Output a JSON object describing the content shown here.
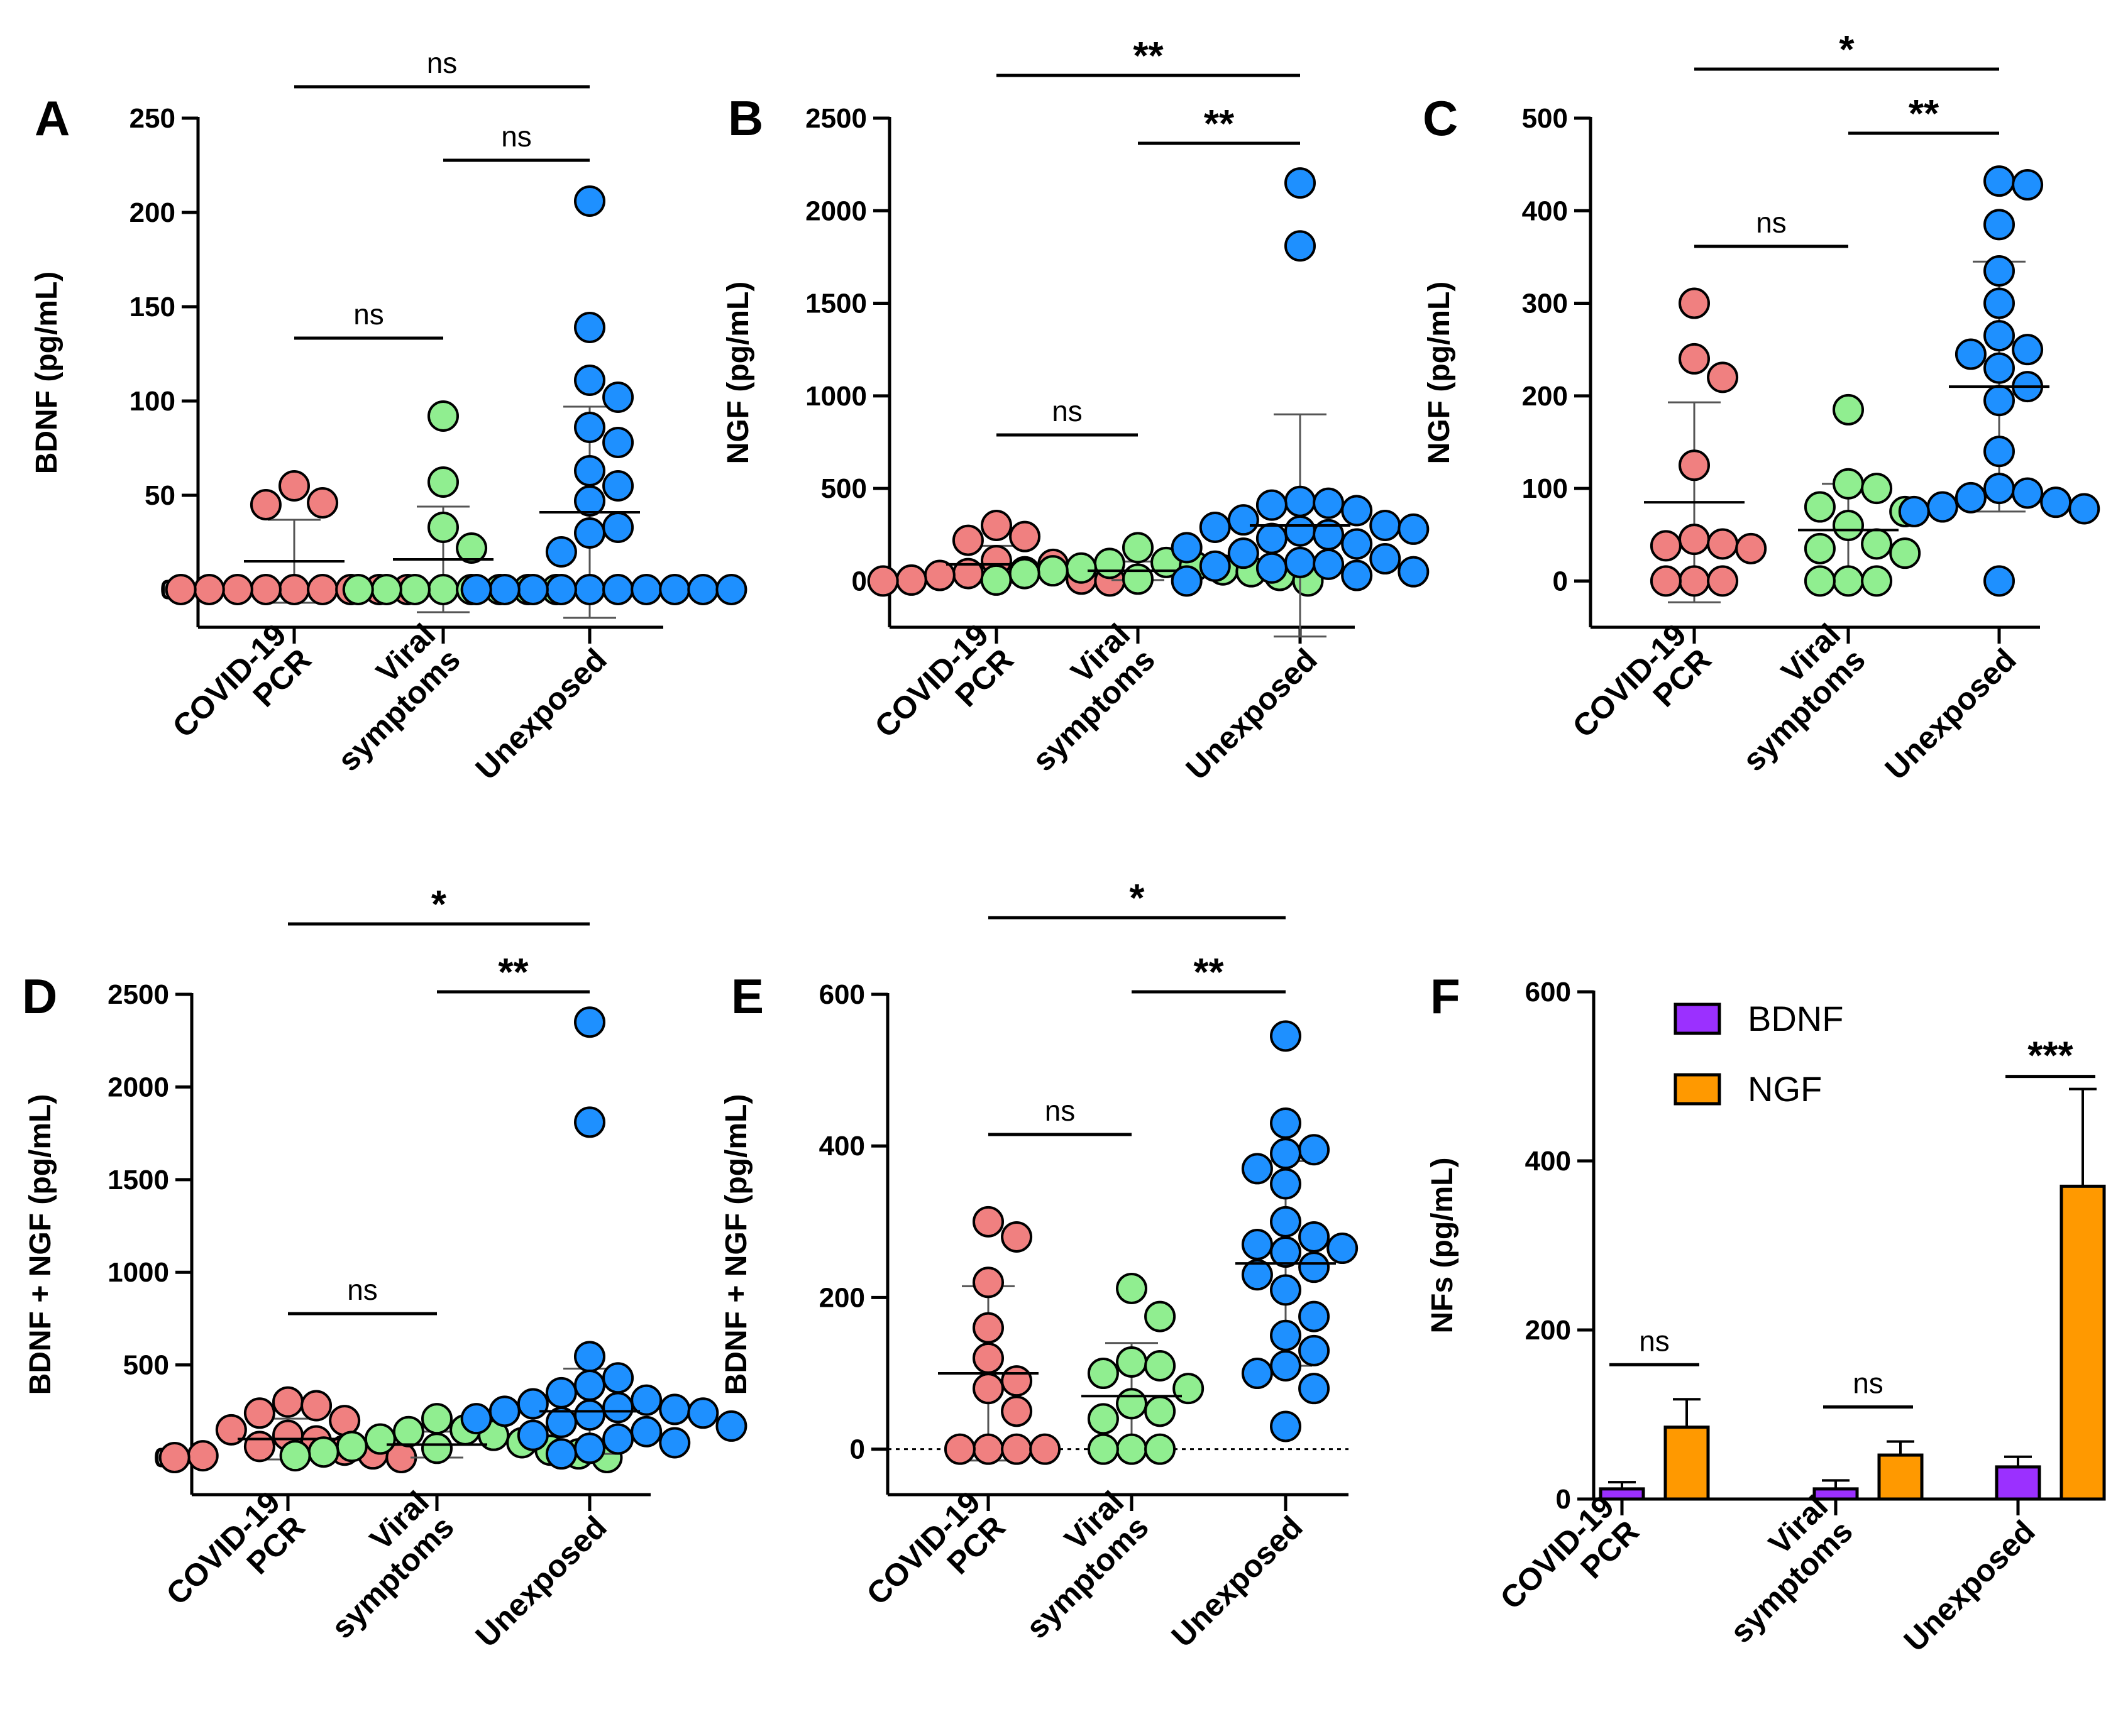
{
  "chart_data": [
    {
      "panel": "A",
      "type": "scatter",
      "ylabel": "BDNF (pg/mL)",
      "ylim": [
        -20,
        250
      ],
      "yticks": [
        0,
        50,
        100,
        150,
        200,
        250
      ],
      "categories": [
        "COVID-19\nPCR",
        "Viral\nsymptoms",
        "Unexposed"
      ],
      "series": [
        {
          "name": "COVID-19 PCR",
          "color": "#f08080",
          "mean": 15,
          "sd": 22,
          "values": [
            55,
            46,
            45,
            0,
            0,
            0,
            0,
            0,
            0,
            0,
            0,
            0
          ]
        },
        {
          "name": "Viral symptoms",
          "color": "#90ee90",
          "mean": 16,
          "sd": 28,
          "values": [
            92,
            57,
            33,
            22,
            0,
            0,
            0,
            0,
            0,
            0,
            0,
            0
          ]
        },
        {
          "name": "Unexposed",
          "color": "#1e90ff",
          "mean": 41,
          "sd": 56,
          "values": [
            206,
            139,
            111,
            102,
            86,
            78,
            63,
            55,
            47,
            33,
            30,
            20,
            0,
            0,
            0,
            0,
            0,
            0,
            0,
            0,
            0,
            0
          ]
        }
      ],
      "comparisons": [
        {
          "from": 0,
          "to": 2,
          "label": "ns",
          "level": 0
        },
        {
          "from": 1,
          "to": 2,
          "label": "ns",
          "level": 1
        },
        {
          "from": 0,
          "to": 1,
          "label": "ns",
          "level": 2
        }
      ]
    },
    {
      "panel": "B",
      "type": "scatter",
      "ylabel": "NGF (pg/mL)",
      "ylim": [
        -250,
        2500
      ],
      "yticks": [
        0,
        500,
        1000,
        1500,
        2000,
        2500
      ],
      "categories": [
        "COVID-19\nPCR",
        "Viral\nsymptoms",
        "Unexposed"
      ],
      "series": [
        {
          "name": "COVID-19 PCR",
          "color": "#f08080",
          "mean": 90,
          "sd": 100,
          "values": [
            300,
            240,
            220,
            110,
            90,
            50,
            40,
            30,
            10,
            5,
            0,
            0
          ]
        },
        {
          "name": "Viral symptoms",
          "color": "#90ee90",
          "mean": 55,
          "sd": 50,
          "values": [
            180,
            100,
            95,
            80,
            70,
            60,
            55,
            50,
            40,
            30,
            10,
            5,
            0
          ]
        },
        {
          "name": "Unexposed",
          "color": "#1e90ff",
          "mean": 300,
          "sd": 600,
          "values": [
            2150,
            1810,
            430,
            420,
            410,
            380,
            330,
            300,
            290,
            280,
            270,
            250,
            230,
            200,
            180,
            150,
            120,
            100,
            90,
            80,
            70,
            50,
            30,
            0
          ]
        }
      ],
      "comparisons": [
        {
          "from": 0,
          "to": 2,
          "label": "**",
          "level": 0
        },
        {
          "from": 1,
          "to": 2,
          "label": "**",
          "level": 1
        },
        {
          "from": 0,
          "to": 1,
          "label": "ns",
          "level": 2
        }
      ]
    },
    {
      "panel": "C",
      "type": "scatter",
      "ylabel": "NGF (pg/mL)",
      "ylim": [
        -50,
        500
      ],
      "yticks": [
        0,
        100,
        200,
        300,
        400,
        500
      ],
      "categories": [
        "COVID-19\nPCR",
        "Viral\nsymptoms",
        "Unexposed"
      ],
      "series": [
        {
          "name": "COVID-19 PCR",
          "color": "#f08080",
          "mean": 85,
          "sd": 108,
          "values": [
            300,
            240,
            220,
            125,
            45,
            40,
            38,
            35,
            0,
            0,
            0
          ]
        },
        {
          "name": "Viral symptoms",
          "color": "#90ee90",
          "mean": 55,
          "sd": 50,
          "values": [
            185,
            105,
            100,
            80,
            75,
            60,
            40,
            35,
            30,
            0,
            0,
            0
          ]
        },
        {
          "name": "Unexposed",
          "color": "#1e90ff",
          "mean": 210,
          "sd": 135,
          "values": [
            432,
            428,
            385,
            335,
            300,
            265,
            250,
            245,
            230,
            210,
            195,
            140,
            100,
            95,
            90,
            85,
            80,
            78,
            75,
            0
          ]
        }
      ],
      "comparisons": [
        {
          "from": 0,
          "to": 2,
          "label": "*",
          "level": 0
        },
        {
          "from": 1,
          "to": 2,
          "label": "**",
          "level": 1
        },
        {
          "from": 0,
          "to": 1,
          "label": "ns",
          "level": 2
        }
      ]
    },
    {
      "panel": "D",
      "type": "scatter",
      "ylabel": "BDNF + NGF (pg/mL)",
      "ylim": [
        -200,
        2500
      ],
      "yticks": [
        0,
        500,
        1000,
        1500,
        2000,
        2500
      ],
      "categories": [
        "COVID-19\nPCR",
        "Viral\nsymptoms",
        "Unexposed"
      ],
      "series": [
        {
          "name": "COVID-19 PCR",
          "color": "#f08080",
          "mean": 100,
          "sd": 110,
          "values": [
            300,
            280,
            240,
            200,
            150,
            120,
            90,
            60,
            40,
            20,
            10,
            0,
            0
          ]
        },
        {
          "name": "Viral symptoms",
          "color": "#90ee90",
          "mean": 70,
          "sd": 70,
          "values": [
            210,
            150,
            140,
            120,
            100,
            80,
            60,
            50,
            40,
            30,
            20,
            10,
            0
          ]
        },
        {
          "name": "Unexposed",
          "color": "#1e90ff",
          "mean": 250,
          "sd": 230,
          "values": [
            2350,
            1810,
            545,
            430,
            390,
            350,
            310,
            290,
            270,
            260,
            250,
            240,
            230,
            210,
            190,
            170,
            140,
            120,
            100,
            80,
            50,
            20
          ]
        }
      ],
      "comparisons": [
        {
          "from": 0,
          "to": 2,
          "label": "*",
          "level": 0
        },
        {
          "from": 1,
          "to": 2,
          "label": "**",
          "level": 1
        },
        {
          "from": 0,
          "to": 1,
          "label": "ns",
          "level": 2
        }
      ]
    },
    {
      "panel": "E",
      "type": "scatter",
      "ylabel": "BDNF + NGF (pg/mL)",
      "ylim": [
        -60,
        600
      ],
      "yticks": [
        0,
        200,
        400,
        600
      ],
      "dotted_zero": true,
      "categories": [
        "COVID-19\nPCR",
        "Viral\nsymptoms",
        "Unexposed"
      ],
      "series": [
        {
          "name": "COVID-19 PCR",
          "color": "#f08080",
          "mean": 100,
          "sd": 115,
          "values": [
            300,
            280,
            220,
            160,
            120,
            90,
            80,
            50,
            0,
            0,
            0,
            0
          ]
        },
        {
          "name": "Viral symptoms",
          "color": "#90ee90",
          "mean": 70,
          "sd": 70,
          "values": [
            212,
            175,
            115,
            110,
            100,
            80,
            60,
            50,
            40,
            0,
            0,
            0
          ]
        },
        {
          "name": "Unexposed",
          "color": "#1e90ff",
          "mean": 245,
          "sd": 135,
          "values": [
            545,
            430,
            395,
            390,
            370,
            350,
            300,
            280,
            270,
            265,
            260,
            240,
            230,
            210,
            175,
            150,
            130,
            110,
            100,
            80,
            30
          ]
        }
      ],
      "comparisons": [
        {
          "from": 0,
          "to": 2,
          "label": "*",
          "level": 0
        },
        {
          "from": 1,
          "to": 2,
          "label": "**",
          "level": 1
        },
        {
          "from": 0,
          "to": 1,
          "label": "ns",
          "level": 2
        }
      ]
    },
    {
      "panel": "F",
      "type": "bar",
      "ylabel": "NFs (pg/mL)",
      "ylim": [
        0,
        600
      ],
      "yticks": [
        0,
        200,
        400,
        600
      ],
      "categories": [
        "COVID-19\nPCR",
        "Viral\nsymptoms",
        "Unexposed"
      ],
      "legend": [
        "BDNF",
        "NGF"
      ],
      "legend_position": "top-left",
      "series": [
        {
          "name": "BDNF",
          "color": "#9b30ff",
          "values": [
            12,
            12,
            38
          ],
          "err": [
            8,
            10,
            12
          ]
        },
        {
          "name": "NGF",
          "color": "#ff9900",
          "values": [
            85,
            52,
            370
          ],
          "err": [
            33,
            16,
            115
          ]
        }
      ],
      "comparisons": [
        {
          "group": 0,
          "label": "ns"
        },
        {
          "group": 1,
          "label": "ns"
        },
        {
          "group": 2,
          "label": "***"
        }
      ]
    }
  ]
}
